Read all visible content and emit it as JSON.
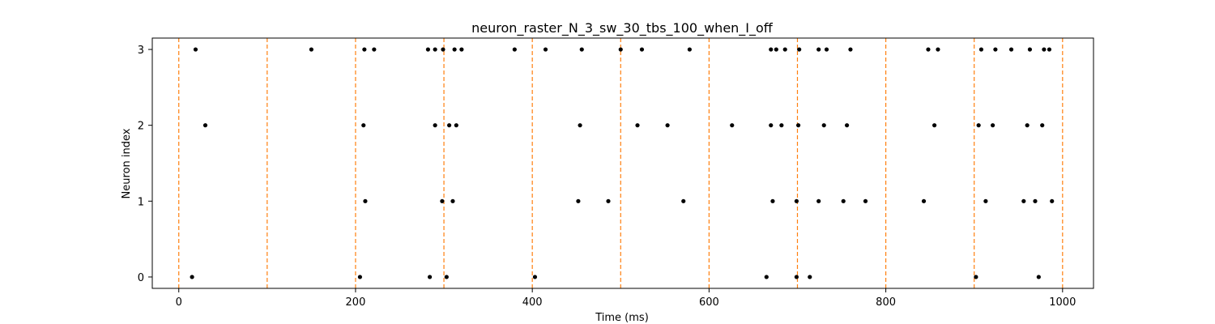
{
  "chart_data": {
    "type": "scatter",
    "title": "neuron_raster_N_3_sw_30_tbs_100_when_I_off",
    "xlabel": "Time (ms)",
    "ylabel": "Neuron index",
    "xlim": [
      -30,
      1035
    ],
    "ylim": [
      -0.15,
      3.15
    ],
    "x_ticks": [
      0,
      200,
      400,
      600,
      800,
      1000
    ],
    "y_ticks": [
      0,
      1,
      2,
      3
    ],
    "grid": false,
    "marker_times": [
      0,
      100,
      200,
      300,
      400,
      500,
      600,
      700,
      800,
      900,
      1000
    ],
    "marker_color": "#ff7f0e",
    "spike_color": "#000000",
    "series": [
      {
        "name": "neuron 0",
        "neuron": 0,
        "times": [
          15,
          205,
          284,
          303,
          403,
          665,
          699,
          714,
          902,
          973
        ]
      },
      {
        "name": "neuron 1",
        "neuron": 1,
        "times": [
          211,
          298,
          310,
          452,
          486,
          571,
          672,
          699,
          724,
          752,
          777,
          843,
          913,
          956,
          969,
          988
        ]
      },
      {
        "name": "neuron 2",
        "neuron": 2,
        "times": [
          30,
          209,
          290,
          306,
          314,
          454,
          519,
          553,
          626,
          670,
          682,
          701,
          730,
          756,
          855,
          905,
          921,
          960,
          977
        ]
      },
      {
        "name": "neuron 3",
        "neuron": 3,
        "times": [
          19,
          150,
          210,
          221,
          282,
          290,
          299,
          312,
          320,
          380,
          415,
          456,
          500,
          524,
          578,
          670,
          676,
          686,
          702,
          724,
          733,
          760,
          848,
          859,
          908,
          924,
          942,
          963,
          979,
          985
        ]
      }
    ]
  }
}
